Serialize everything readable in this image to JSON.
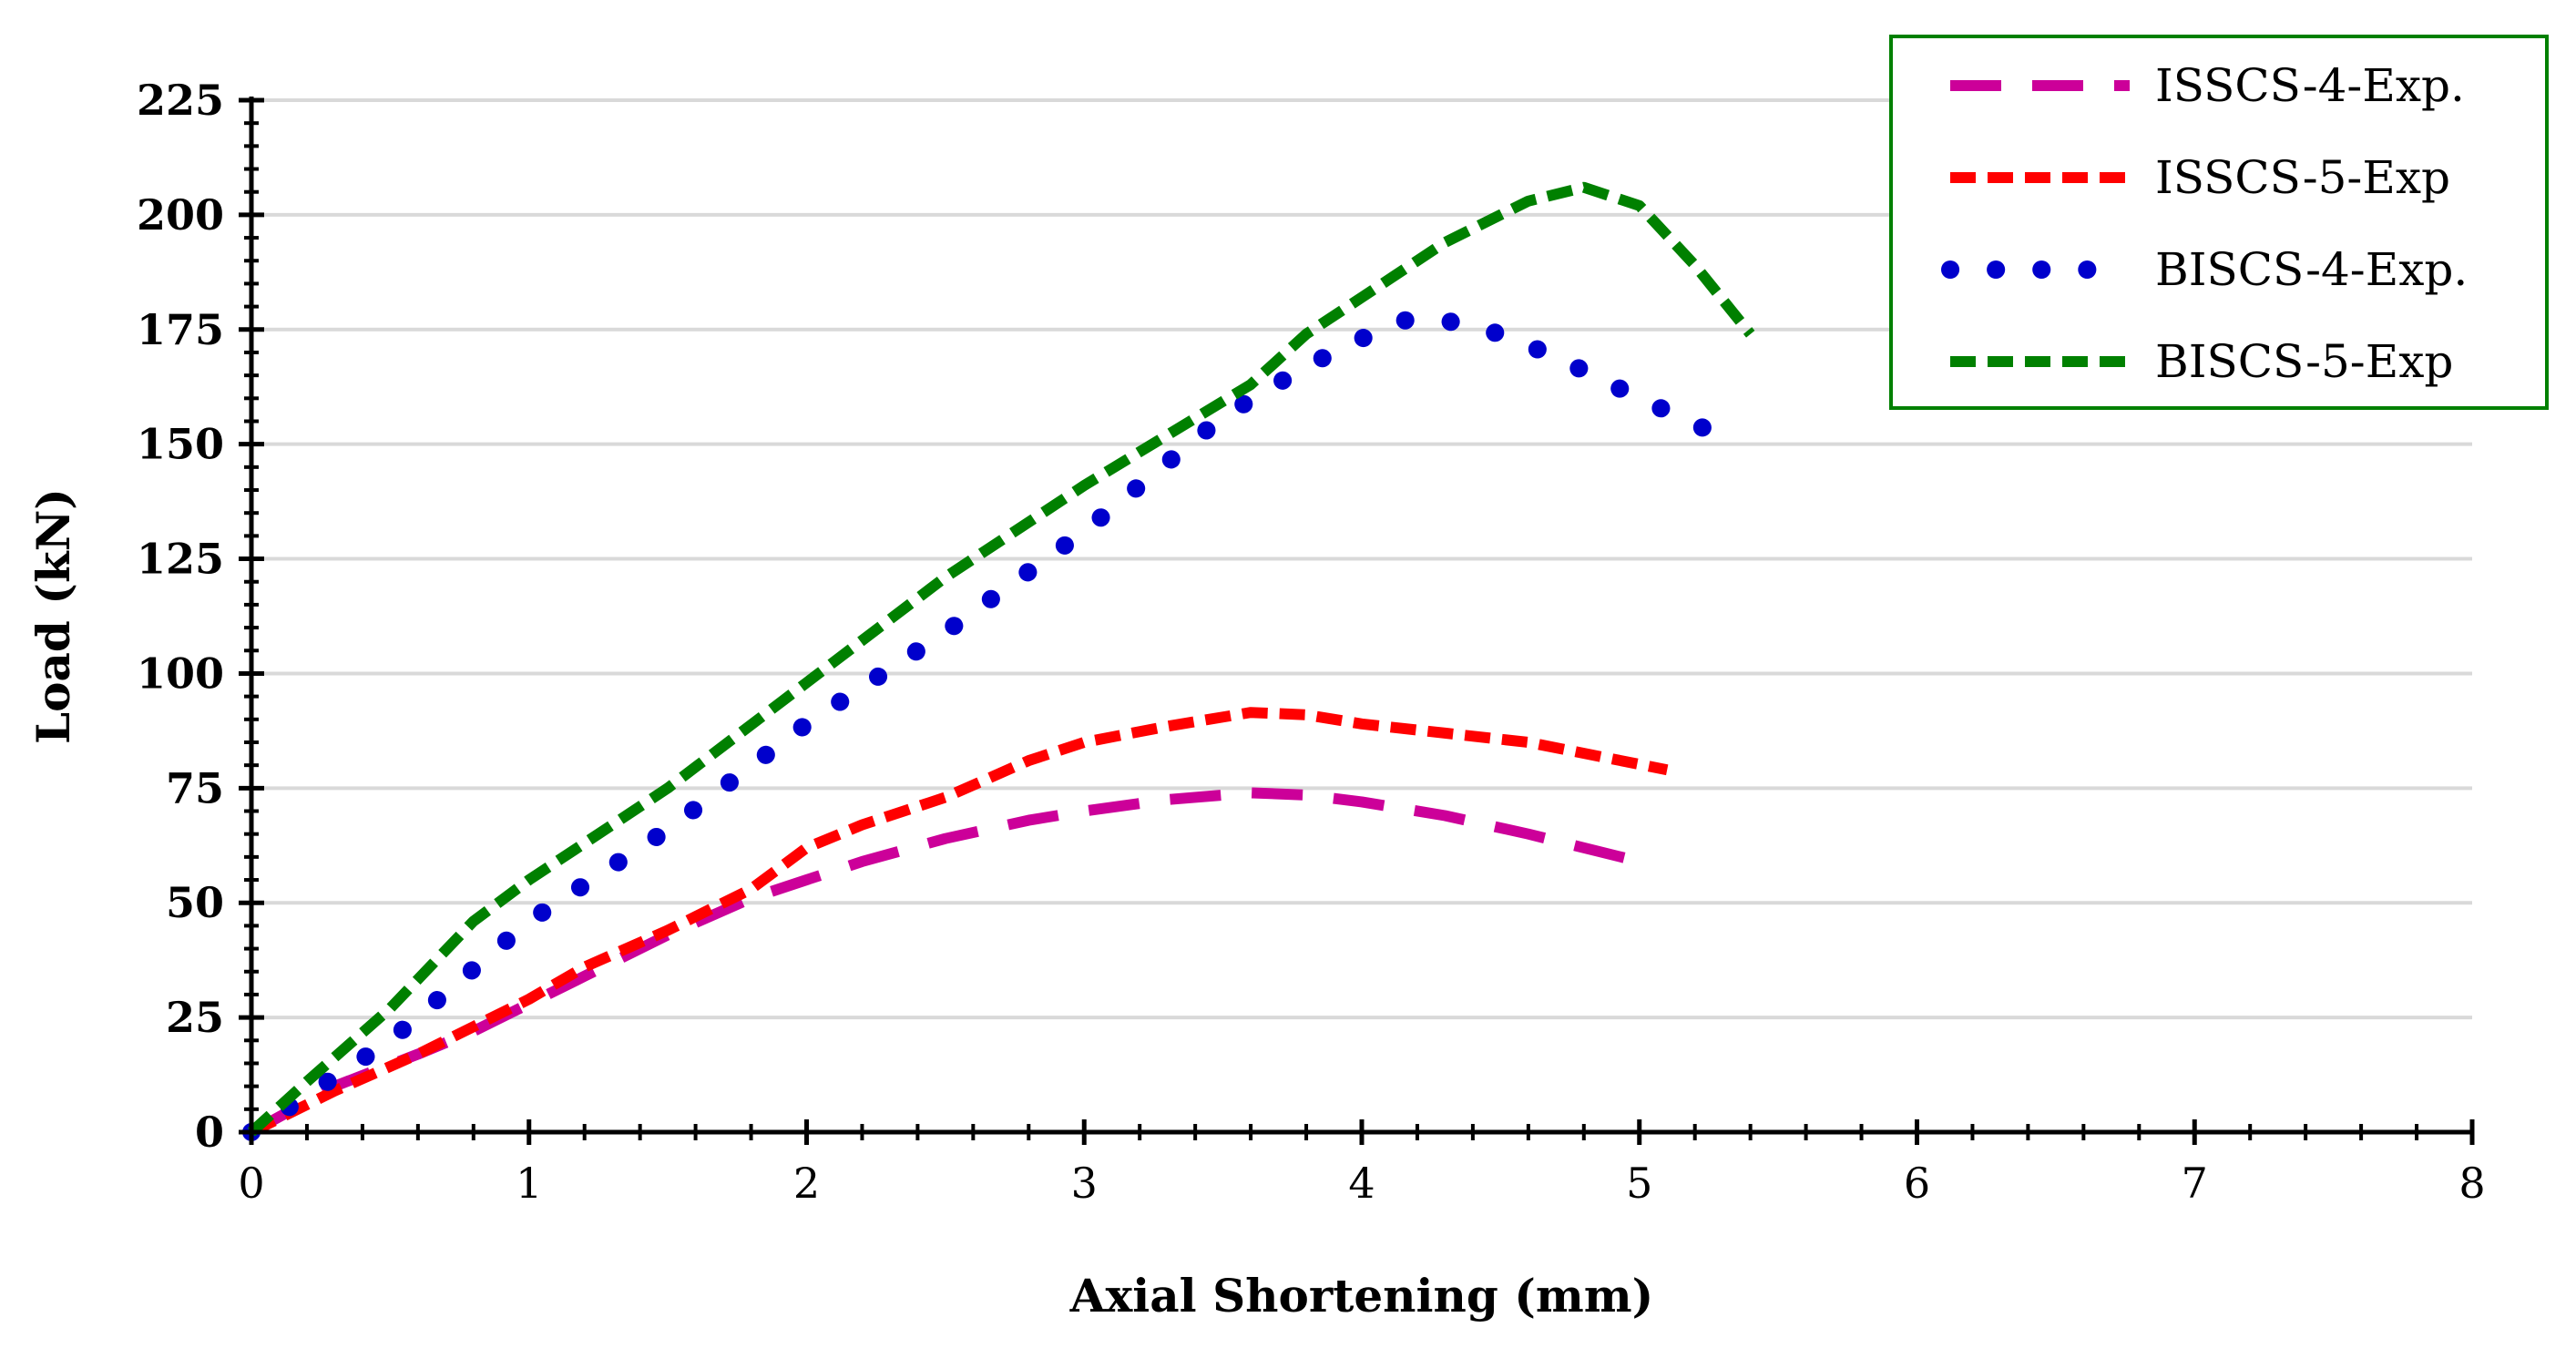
{
  "chart_data": {
    "type": "line",
    "title": "",
    "xlabel": "Axial Shortening (mm)",
    "ylabel": "Load (kN)",
    "xlim": [
      0,
      8
    ],
    "ylim": [
      0,
      225
    ],
    "xticks": [
      0,
      1,
      2,
      3,
      4,
      5,
      6,
      7,
      8
    ],
    "yticks": [
      0,
      25,
      50,
      75,
      100,
      125,
      150,
      175,
      200,
      225
    ],
    "grid": "horizontal",
    "legend_position": "top-right",
    "series": [
      {
        "name": "ISSCS-4-Exp.",
        "color": "#cc0099",
        "style": "long-dash",
        "x": [
          0,
          0.3,
          0.6,
          0.8,
          1.0,
          1.2,
          1.5,
          1.8,
          2.0,
          2.2,
          2.5,
          2.8,
          3.0,
          3.3,
          3.6,
          3.8,
          4.0,
          4.3,
          4.6,
          5.0
        ],
        "y": [
          0,
          10,
          17,
          22,
          28,
          34,
          43,
          51,
          55,
          59,
          64,
          68,
          70,
          72.5,
          74,
          73.5,
          72,
          69,
          65,
          59
        ]
      },
      {
        "name": "ISSCS-5-Exp",
        "color": "#ff0000",
        "style": "dash",
        "x": [
          0,
          0.3,
          0.6,
          0.8,
          1.0,
          1.2,
          1.5,
          1.8,
          2.0,
          2.2,
          2.5,
          2.8,
          3.0,
          3.3,
          3.6,
          3.8,
          4.0,
          4.3,
          4.6,
          5.1
        ],
        "y": [
          0,
          9,
          17,
          23,
          29,
          36,
          44,
          53,
          62,
          67,
          73,
          81,
          85,
          88.5,
          91.5,
          91,
          89,
          87,
          85,
          79
        ]
      },
      {
        "name": "BISCS-4-Exp.",
        "color": "#0000cc",
        "style": "dot",
        "x": [
          0,
          0.5,
          1.0,
          1.5,
          2.0,
          2.5,
          3.0,
          3.5,
          3.8,
          4.0,
          4.15,
          4.3,
          4.5,
          4.7,
          5.0,
          5.32
        ],
        "y": [
          0,
          20,
          46,
          66,
          89,
          109,
          131,
          156,
          167,
          173,
          177,
          177,
          174,
          169,
          160,
          151
        ]
      },
      {
        "name": "BISCS-5-Exp",
        "color": "#008000",
        "style": "dash",
        "x": [
          0,
          0.2,
          0.5,
          0.8,
          1.0,
          1.5,
          2.0,
          2.5,
          3.0,
          3.3,
          3.6,
          3.8,
          4.0,
          4.3,
          4.6,
          4.8,
          5.0,
          5.2,
          5.4
        ],
        "y": [
          0,
          11,
          27,
          46,
          55,
          75,
          98,
          121,
          141,
          152,
          163,
          174,
          182,
          194,
          203,
          206,
          202,
          189,
          174
        ]
      }
    ]
  }
}
